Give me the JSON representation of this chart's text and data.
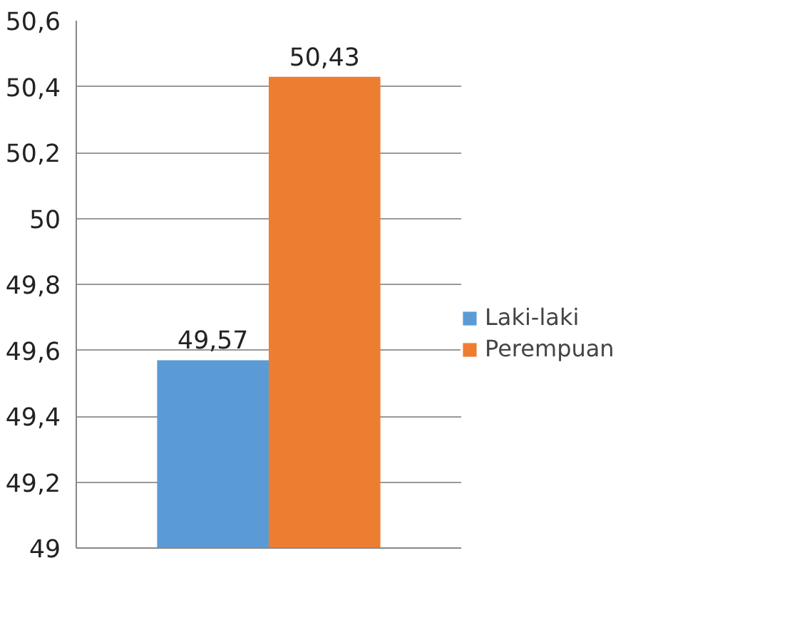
{
  "chart_data": {
    "type": "bar",
    "categories": [
      null
    ],
    "series": [
      {
        "name": "Laki-laki",
        "color": "#5b9bd5",
        "values": [
          49.57
        ],
        "value_labels": [
          "49,57"
        ]
      },
      {
        "name": "Perempuan",
        "color": "#ed7d31",
        "values": [
          50.43
        ],
        "value_labels": [
          "50,43"
        ]
      }
    ],
    "ylim": [
      49,
      50.6
    ],
    "yticks": [
      49,
      {
        "value": 49.2,
        "label": "49,2"
      },
      {
        "value": 49.4,
        "label": "49,4"
      },
      {
        "value": 49.6,
        "label": "49,6"
      },
      {
        "value": 49.8,
        "label": "49,8"
      },
      50,
      {
        "value": 50.2,
        "label": "50,2"
      },
      {
        "value": 50.4,
        "label": "50,4"
      },
      {
        "value": 50.6,
        "label": "50,6"
      }
    ],
    "grid": "y",
    "legend": "right"
  }
}
